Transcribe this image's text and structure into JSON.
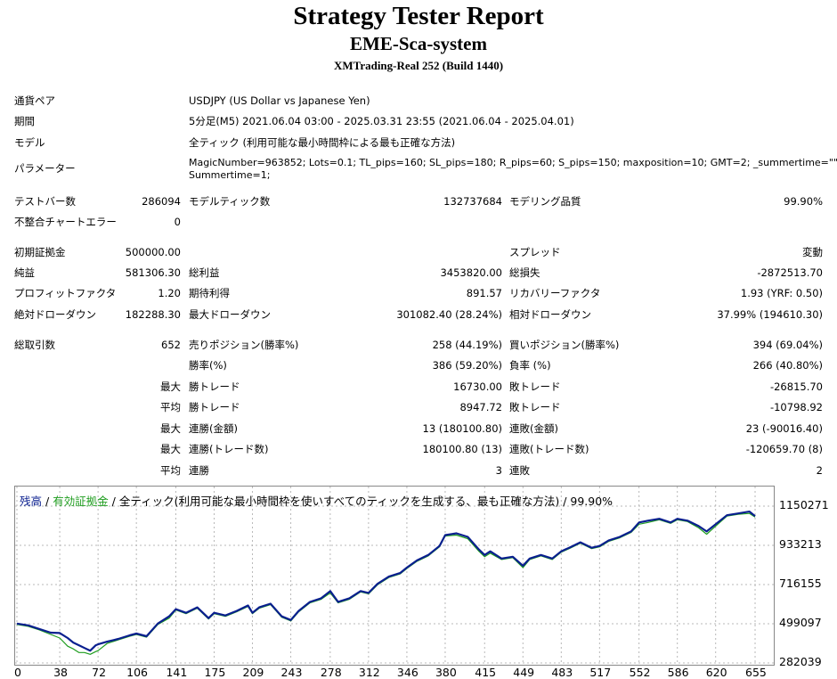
{
  "header": {
    "title": "Strategy Tester Report",
    "subtitle": "EME-Sca-system",
    "build": "XMTrading-Real 252 (Build 1440)"
  },
  "info": {
    "pair_label": "通貨ペア",
    "pair_value": "USDJPY (US Dollar vs Japanese Yen)",
    "period_label": "期間",
    "period_value": "5分足(M5) 2021.06.04 03:00 - 2025.03.31 23:55 (2021.06.04 - 2025.04.01)",
    "model_label": "モデル",
    "model_value": "全ティック (利用可能な最小時間枠による最も正確な方法)",
    "params_label": "パラメーター",
    "params_line1": "MagicNumber=963852; Lots=0.1; TL_pips=160; SL_pips=180; R_pips=60; S_pips=150; maxposition=10; GMT=2; _summertime=\"\";",
    "params_line2": "Summertime=1;"
  },
  "stats": {
    "bars_label": "テストバー数",
    "bars_value": "286094",
    "ticks_label": "モデルティック数",
    "ticks_value": "132737684",
    "quality_label": "モデリング品質",
    "quality_value": "99.90%",
    "errors_label": "不整合チャートエラー",
    "errors_value": "0",
    "deposit_label": "初期証拠金",
    "deposit_value": "500000.00",
    "spread_label": "スプレッド",
    "spread_value": "変動",
    "net_label": "純益",
    "net_value": "581306.30",
    "gross_profit_label": "総利益",
    "gross_profit_value": "3453820.00",
    "gross_loss_label": "総損失",
    "gross_loss_value": "-2872513.70",
    "pf_label": "プロフィットファクタ",
    "pf_value": "1.20",
    "expected_label": "期待利得",
    "expected_value": "891.57",
    "recovery_label": "リカバリーファクタ",
    "recovery_value": "1.93 (YRF: 0.50)",
    "abs_dd_label": "絶対ドローダウン",
    "abs_dd_value": "182288.30",
    "max_dd_label": "最大ドローダウン",
    "max_dd_value": "301082.40 (28.24%)",
    "rel_dd_label": "相対ドローダウン",
    "rel_dd_value": "37.99% (194610.30)",
    "total_trades_label": "総取引数",
    "total_trades_value": "652",
    "short_label": "売りポジション(勝率%)",
    "short_value": "258 (44.19%)",
    "long_label": "買いポジション(勝率%)",
    "long_value": "394 (69.04%)",
    "win_rate_label": "勝率(%)",
    "win_rate_value": "386 (59.20%)",
    "loss_rate_label": "負率 (%)",
    "loss_rate_value": "266 (40.80%)",
    "max_label": "最大",
    "avg_label": "平均",
    "largest_win_label": "勝トレード",
    "largest_win_value": "16730.00",
    "largest_loss_label": "敗トレード",
    "largest_loss_value": "-26815.70",
    "avg_win_label": "勝トレード",
    "avg_win_value": "8947.72",
    "avg_loss_label": "敗トレード",
    "avg_loss_value": "-10798.92",
    "max_consec_win_label": "連勝(金額)",
    "max_consec_win_value": "13 (180100.80)",
    "max_consec_loss_label": "連敗(金額)",
    "max_consec_loss_value": "23 (-90016.40)",
    "max_consec_profit_label": "連勝(トレード数)",
    "max_consec_profit_value": "180100.80 (13)",
    "max_consec_lossamt_label": "連敗(トレード数)",
    "max_consec_lossamt_value": "-120659.70 (8)",
    "avg_consec_win_label": "連勝",
    "avg_consec_win_value": "3",
    "avg_consec_loss_label": "連敗",
    "avg_consec_loss_value": "2"
  },
  "chart_legend": {
    "balance": "残高",
    "sep1": " / ",
    "equity": "有効証拠金",
    "rest": " / 全ティック(利用可能な最小時間枠を使いすべてのティックを生成する、最も正確な方法) / 99.90%"
  },
  "colors": {
    "balance": "#0a1f8f",
    "equity": "#1f9d1f",
    "legend_balance": "#0a1f8f",
    "legend_equity": "#1f9d1f",
    "grid": "#b8b8b8"
  },
  "chart_data": {
    "type": "line",
    "ylim": [
      282039,
      1150271
    ],
    "y_ticks": [
      "1150271",
      "933213",
      "716155",
      "499097",
      "282039"
    ],
    "x_ticks": [
      "0",
      "38",
      "72",
      "106",
      "141",
      "175",
      "209",
      "243",
      "278",
      "312",
      "346",
      "380",
      "415",
      "449",
      "483",
      "517",
      "552",
      "586",
      "620",
      "655"
    ],
    "grid": true,
    "series": [
      {
        "name": "残高",
        "x": [
          0,
          10,
          20,
          30,
          38,
          45,
          50,
          55,
          60,
          65,
          70,
          72,
          80,
          90,
          100,
          106,
          115,
          125,
          135,
          141,
          150,
          160,
          170,
          175,
          185,
          195,
          205,
          209,
          215,
          225,
          235,
          243,
          250,
          260,
          270,
          278,
          285,
          295,
          305,
          312,
          320,
          330,
          340,
          346,
          355,
          365,
          375,
          380,
          390,
          400,
          410,
          415,
          420,
          430,
          440,
          449,
          455,
          465,
          475,
          483,
          490,
          500,
          510,
          517,
          525,
          535,
          545,
          552,
          560,
          570,
          580,
          586,
          595,
          605,
          612,
          620,
          630,
          640,
          650,
          655
        ],
        "y": [
          500000,
          490000,
          470000,
          450000,
          448000,
          420000,
          395000,
          380000,
          365000,
          350000,
          380000,
          385000,
          400000,
          415000,
          435000,
          445000,
          430000,
          500000,
          540000,
          580000,
          560000,
          590000,
          530000,
          560000,
          545000,
          570000,
          600000,
          560000,
          590000,
          610000,
          540000,
          520000,
          570000,
          620000,
          640000,
          680000,
          620000,
          640000,
          680000,
          670000,
          720000,
          760000,
          780000,
          810000,
          850000,
          880000,
          930000,
          990000,
          1000000,
          980000,
          910000,
          880000,
          900000,
          860000,
          870000,
          820000,
          860000,
          880000,
          860000,
          900000,
          920000,
          950000,
          920000,
          930000,
          960000,
          980000,
          1010000,
          1060000,
          1070000,
          1080000,
          1060000,
          1080000,
          1070000,
          1040000,
          1010000,
          1050000,
          1100000,
          1110000,
          1120000,
          1095000
        ]
      },
      {
        "name": "有効証拠金",
        "x": [
          0,
          10,
          20,
          30,
          38,
          45,
          50,
          55,
          60,
          65,
          70,
          72,
          80,
          90,
          100,
          106,
          115,
          125,
          135,
          141,
          150,
          160,
          170,
          175,
          185,
          195,
          205,
          209,
          215,
          225,
          235,
          243,
          250,
          260,
          270,
          278,
          285,
          295,
          305,
          312,
          320,
          330,
          340,
          346,
          355,
          365,
          375,
          380,
          390,
          400,
          410,
          415,
          420,
          430,
          440,
          449,
          455,
          465,
          475,
          483,
          490,
          500,
          510,
          517,
          525,
          535,
          545,
          552,
          560,
          570,
          580,
          586,
          595,
          605,
          612,
          620,
          630,
          640,
          650,
          655
        ],
        "y": [
          495000,
          485000,
          465000,
          440000,
          420000,
          375000,
          360000,
          340000,
          340000,
          330000,
          345000,
          350000,
          390000,
          410000,
          430000,
          440000,
          425000,
          495000,
          530000,
          575000,
          555000,
          585000,
          525000,
          555000,
          540000,
          565000,
          595000,
          555000,
          585000,
          605000,
          535000,
          515000,
          565000,
          615000,
          635000,
          670000,
          615000,
          635000,
          675000,
          665000,
          715000,
          755000,
          775000,
          805000,
          845000,
          875000,
          925000,
          985000,
          990000,
          970000,
          900000,
          870000,
          890000,
          855000,
          865000,
          810000,
          855000,
          875000,
          855000,
          895000,
          915000,
          945000,
          915000,
          925000,
          955000,
          975000,
          1005000,
          1050000,
          1060000,
          1075000,
          1055000,
          1075000,
          1065000,
          1030000,
          995000,
          1040000,
          1095000,
          1105000,
          1110000,
          1090000
        ]
      }
    ]
  }
}
